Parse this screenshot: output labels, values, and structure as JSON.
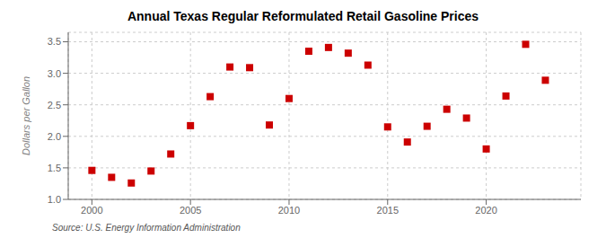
{
  "chart_data": {
    "type": "scatter",
    "title": "Annual Texas Regular Reformulated Retail Gasoline Prices",
    "y_label": "Dollars per Gallon",
    "annotations": [
      "Source: U.S. Energy Information Administration"
    ],
    "x": [
      2000,
      2001,
      2002,
      2003,
      2004,
      2005,
      2006,
      2007,
      2008,
      2009,
      2010,
      2011,
      2012,
      2013,
      2014,
      2015,
      2016,
      2017,
      2018,
      2019,
      2020,
      2021,
      2022,
      2023
    ],
    "values": [
      1.46,
      1.35,
      1.26,
      1.45,
      1.72,
      2.17,
      2.63,
      3.1,
      3.09,
      2.18,
      2.6,
      3.35,
      3.41,
      3.32,
      3.13,
      2.15,
      1.91,
      2.16,
      2.43,
      2.29,
      1.8,
      2.64,
      3.46,
      2.89
    ],
    "color": "#cc0000",
    "marker": "square",
    "xlim": [
      1998.8,
      2024.8
    ],
    "ylim": [
      1.0,
      3.65
    ],
    "xticks": [
      2000,
      2005,
      2010,
      2015,
      2020
    ],
    "yticks": [
      {
        "value": 1.0,
        "label": "1.0"
      },
      1.5,
      {
        "value": 2.0,
        "label": "2.0"
      },
      2.5,
      {
        "value": 3.0,
        "label": "3.0"
      },
      3.5
    ],
    "grid": true
  }
}
